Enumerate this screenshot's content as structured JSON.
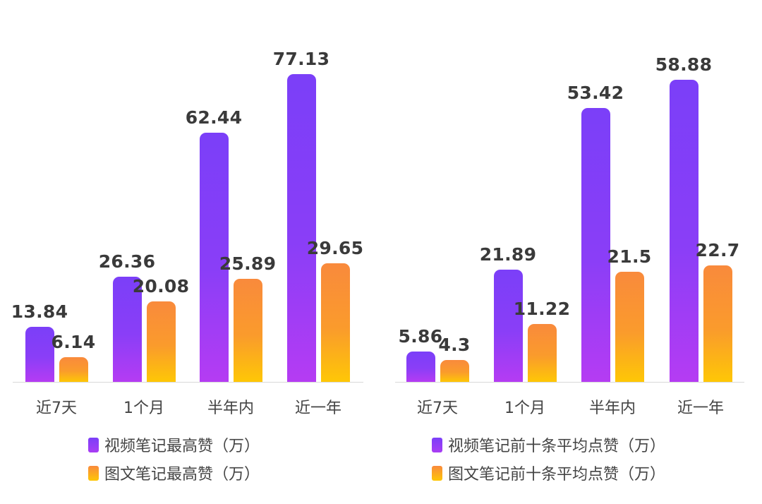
{
  "chart_data": [
    {
      "type": "bar",
      "title": "",
      "xlabel": "",
      "ylabel": "",
      "categories": [
        "近7天",
        "1个月",
        "半年内",
        "近一年"
      ],
      "series": [
        {
          "name": "视频笔记最高赞（万）",
          "values": [
            13.84,
            26.36,
            62.44,
            77.13
          ],
          "color": "#7B3FF8"
        },
        {
          "name": "图文笔记最高赞（万）",
          "values": [
            6.14,
            20.08,
            25.89,
            29.65
          ],
          "color": "#F98A3C"
        }
      ],
      "value_labels": [
        [
          "13.84",
          "26.36",
          "62.44",
          "77.13"
        ],
        [
          "6.14",
          "20.08",
          "25.89",
          "29.65"
        ]
      ],
      "grid": false,
      "legend_position": "bottom"
    },
    {
      "type": "bar",
      "title": "",
      "xlabel": "",
      "ylabel": "",
      "categories": [
        "近7天",
        "1个月",
        "半年内",
        "近一年"
      ],
      "series": [
        {
          "name": "视频笔记前十条平均点赞（万）",
          "values": [
            5.86,
            21.89,
            53.42,
            58.88
          ],
          "color": "#7B3FF8"
        },
        {
          "name": "图文笔记前十条平均点赞（万）",
          "values": [
            4.3,
            11.22,
            21.5,
            22.7
          ],
          "color": "#F98A3C"
        }
      ],
      "value_labels": [
        [
          "5.86",
          "21.89",
          "53.42",
          "58.88"
        ],
        [
          "4.3",
          "11.22",
          "21.5",
          "22.7"
        ]
      ],
      "grid": false,
      "legend_position": "bottom"
    }
  ]
}
